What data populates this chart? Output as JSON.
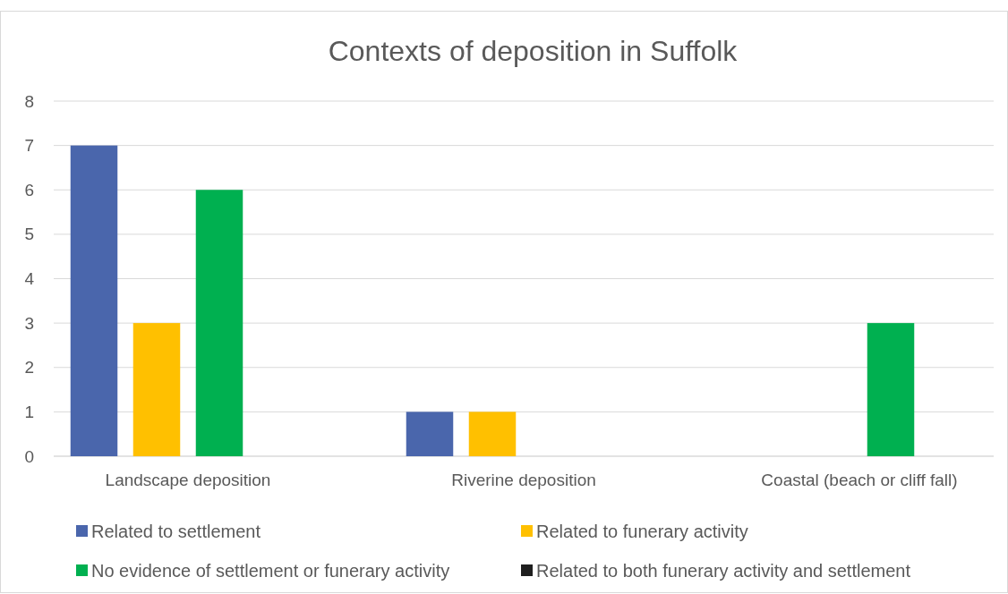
{
  "chart_data": {
    "type": "bar",
    "title": "Contexts of deposition in Suffolk",
    "categories": [
      "Landscape deposition",
      "Riverine deposition",
      "Coastal (beach or cliff fall)"
    ],
    "series": [
      {
        "name": "Related to settlement",
        "color": "#4a66ac",
        "values": [
          7,
          1,
          0
        ]
      },
      {
        "name": "Related to funerary activity",
        "color": "#ffc000",
        "values": [
          3,
          1,
          0
        ]
      },
      {
        "name": "No evidence of settlement or funerary activity",
        "color": "#00b050",
        "values": [
          6,
          0,
          3
        ]
      },
      {
        "name": "Related to both funerary activity and settlement",
        "color": "#1f1f1f",
        "values": [
          0,
          0,
          0
        ]
      }
    ],
    "ylim": [
      0,
      8
    ],
    "yticks": [
      0,
      1,
      2,
      3,
      4,
      5,
      6,
      7,
      8
    ],
    "grid": "y",
    "legend": "bottom"
  }
}
